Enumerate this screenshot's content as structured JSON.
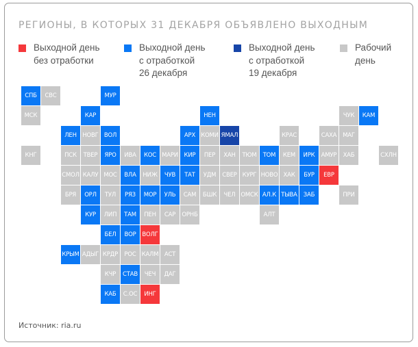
{
  "title": "РЕГИОНЫ, В КОТОРЫХ 31 ДЕКАБРЯ ОБЪЯВЛЕНО ВЫХОДНЫМ",
  "source": "Источник: ria.ru",
  "colors": {
    "red": "#F5383B",
    "blue": "#0A78F5",
    "dark": "#1745A8",
    "grey": "#C8C8C8"
  },
  "legend": [
    {
      "key": "red",
      "label": "Выходной день\nбез отработки"
    },
    {
      "key": "blue",
      "label": "Выходной день\nс отработкой\n26 декабря"
    },
    {
      "key": "dark",
      "label": "Выходной день\nс отработкой\n19 декабря"
    },
    {
      "key": "grey",
      "label": "Рабочий\nдень"
    }
  ],
  "chart_data": {
    "type": "heatmap",
    "title": "РЕГИОНЫ, В КОТОРЫХ 31 ДЕКАБРЯ ОБЪЯВЛЕНО ВЫХОДНЫМ",
    "description": "Tile grid map of Russian regions (col, row), category per region",
    "categories": {
      "red": "Выходной день без отработки",
      "blue": "Выходной день с отработкой 26 декабря",
      "dark": "Выходной день с отработкой 19 декабря",
      "grey": "Рабочий день"
    },
    "cells": [
      {
        "label": "СПБ",
        "c": 0,
        "r": 0,
        "cat": "blue"
      },
      {
        "label": "СВС",
        "c": 1,
        "r": 0,
        "cat": "grey"
      },
      {
        "label": "МУР",
        "c": 4,
        "r": 0,
        "cat": "blue"
      },
      {
        "label": "МСК",
        "c": 0,
        "r": 1,
        "cat": "grey"
      },
      {
        "label": "КАР",
        "c": 3,
        "r": 1,
        "cat": "blue"
      },
      {
        "label": "НЕН",
        "c": 9,
        "r": 1,
        "cat": "blue"
      },
      {
        "label": "ЧУК",
        "c": 16,
        "r": 1,
        "cat": "grey"
      },
      {
        "label": "КАМ",
        "c": 17,
        "r": 1,
        "cat": "blue"
      },
      {
        "label": "ЛЕН",
        "c": 2,
        "r": 2,
        "cat": "blue"
      },
      {
        "label": "НОВГ",
        "c": 3,
        "r": 2,
        "cat": "grey"
      },
      {
        "label": "ВОЛ",
        "c": 4,
        "r": 2,
        "cat": "blue"
      },
      {
        "label": "АРХ",
        "c": 8,
        "r": 2,
        "cat": "blue"
      },
      {
        "label": "КОМИ",
        "c": 9,
        "r": 2,
        "cat": "grey"
      },
      {
        "label": "ЯМАЛ",
        "c": 10,
        "r": 2,
        "cat": "dark"
      },
      {
        "label": "КРАС",
        "c": 13,
        "r": 2,
        "cat": "grey"
      },
      {
        "label": "САХА",
        "c": 15,
        "r": 2,
        "cat": "grey"
      },
      {
        "label": "МАГ",
        "c": 16,
        "r": 2,
        "cat": "grey"
      },
      {
        "label": "КНГ",
        "c": 0,
        "r": 3,
        "cat": "grey"
      },
      {
        "label": "ПСК",
        "c": 2,
        "r": 3,
        "cat": "grey"
      },
      {
        "label": "ТВЕР",
        "c": 3,
        "r": 3,
        "cat": "grey"
      },
      {
        "label": "ЯРО",
        "c": 4,
        "r": 3,
        "cat": "blue"
      },
      {
        "label": "ИВА",
        "c": 5,
        "r": 3,
        "cat": "grey"
      },
      {
        "label": "КОС",
        "c": 6,
        "r": 3,
        "cat": "blue"
      },
      {
        "label": "МАРИ",
        "c": 7,
        "r": 3,
        "cat": "grey"
      },
      {
        "label": "КИР",
        "c": 8,
        "r": 3,
        "cat": "blue"
      },
      {
        "label": "ПЕР",
        "c": 9,
        "r": 3,
        "cat": "grey"
      },
      {
        "label": "ХАН",
        "c": 10,
        "r": 3,
        "cat": "grey"
      },
      {
        "label": "ТЮМ",
        "c": 11,
        "r": 3,
        "cat": "grey"
      },
      {
        "label": "ТОМ",
        "c": 12,
        "r": 3,
        "cat": "blue"
      },
      {
        "label": "КЕМ",
        "c": 13,
        "r": 3,
        "cat": "grey"
      },
      {
        "label": "ИРК",
        "c": 14,
        "r": 3,
        "cat": "blue"
      },
      {
        "label": "АМУР",
        "c": 15,
        "r": 3,
        "cat": "grey"
      },
      {
        "label": "ХАБ",
        "c": 16,
        "r": 3,
        "cat": "grey"
      },
      {
        "label": "СХЛН",
        "c": 18,
        "r": 3,
        "cat": "grey"
      },
      {
        "label": "СМОЛ",
        "c": 2,
        "r": 4,
        "cat": "grey"
      },
      {
        "label": "КАЛУ",
        "c": 3,
        "r": 4,
        "cat": "grey"
      },
      {
        "label": "МОС",
        "c": 4,
        "r": 4,
        "cat": "grey"
      },
      {
        "label": "ВЛА",
        "c": 5,
        "r": 4,
        "cat": "blue"
      },
      {
        "label": "НИЖ",
        "c": 6,
        "r": 4,
        "cat": "grey"
      },
      {
        "label": "ЧУВ",
        "c": 7,
        "r": 4,
        "cat": "blue"
      },
      {
        "label": "ТАТ",
        "c": 8,
        "r": 4,
        "cat": "blue"
      },
      {
        "label": "УДМ",
        "c": 9,
        "r": 4,
        "cat": "grey"
      },
      {
        "label": "СВЕР",
        "c": 10,
        "r": 4,
        "cat": "grey"
      },
      {
        "label": "КУРГ",
        "c": 11,
        "r": 4,
        "cat": "grey"
      },
      {
        "label": "НОВО",
        "c": 12,
        "r": 4,
        "cat": "grey"
      },
      {
        "label": "ХАК",
        "c": 13,
        "r": 4,
        "cat": "grey"
      },
      {
        "label": "БУР",
        "c": 14,
        "r": 4,
        "cat": "blue"
      },
      {
        "label": "ЕВР",
        "c": 15,
        "r": 4,
        "cat": "red"
      },
      {
        "label": "БРЯ",
        "c": 2,
        "r": 5,
        "cat": "grey"
      },
      {
        "label": "ОРЛ",
        "c": 3,
        "r": 5,
        "cat": "blue"
      },
      {
        "label": "ТУЛ",
        "c": 4,
        "r": 5,
        "cat": "grey"
      },
      {
        "label": "РЯЗ",
        "c": 5,
        "r": 5,
        "cat": "blue"
      },
      {
        "label": "МОР",
        "c": 6,
        "r": 5,
        "cat": "blue"
      },
      {
        "label": "УЛЬ",
        "c": 7,
        "r": 5,
        "cat": "blue"
      },
      {
        "label": "САМ",
        "c": 8,
        "r": 5,
        "cat": "grey"
      },
      {
        "label": "БШК",
        "c": 9,
        "r": 5,
        "cat": "grey"
      },
      {
        "label": "ЧЕЛ",
        "c": 10,
        "r": 5,
        "cat": "grey"
      },
      {
        "label": "ОМСК",
        "c": 11,
        "r": 5,
        "cat": "grey"
      },
      {
        "label": "АЛ.К",
        "c": 12,
        "r": 5,
        "cat": "blue"
      },
      {
        "label": "ТЫВА",
        "c": 13,
        "r": 5,
        "cat": "blue"
      },
      {
        "label": "ЗАБ",
        "c": 14,
        "r": 5,
        "cat": "blue"
      },
      {
        "label": "ПРИ",
        "c": 16,
        "r": 5,
        "cat": "grey"
      },
      {
        "label": "КУР",
        "c": 3,
        "r": 6,
        "cat": "blue"
      },
      {
        "label": "ЛИП",
        "c": 4,
        "r": 6,
        "cat": "grey"
      },
      {
        "label": "ТАМ",
        "c": 5,
        "r": 6,
        "cat": "blue"
      },
      {
        "label": "ПЕН",
        "c": 6,
        "r": 6,
        "cat": "grey"
      },
      {
        "label": "САР",
        "c": 7,
        "r": 6,
        "cat": "grey"
      },
      {
        "label": "ОРНБ",
        "c": 8,
        "r": 6,
        "cat": "grey"
      },
      {
        "label": "АЛТ",
        "c": 12,
        "r": 6,
        "cat": "grey"
      },
      {
        "label": "БЕЛ",
        "c": 4,
        "r": 7,
        "cat": "blue"
      },
      {
        "label": "ВОР",
        "c": 5,
        "r": 7,
        "cat": "blue"
      },
      {
        "label": "ВОЛГ",
        "c": 6,
        "r": 7,
        "cat": "red"
      },
      {
        "label": "КРЫМ",
        "c": 2,
        "r": 8,
        "cat": "blue"
      },
      {
        "label": "АДЫГ",
        "c": 3,
        "r": 8,
        "cat": "grey"
      },
      {
        "label": "КРДР",
        "c": 4,
        "r": 8,
        "cat": "grey"
      },
      {
        "label": "РОС",
        "c": 5,
        "r": 8,
        "cat": "grey"
      },
      {
        "label": "КАЛМ",
        "c": 6,
        "r": 8,
        "cat": "grey"
      },
      {
        "label": "АСТ",
        "c": 7,
        "r": 8,
        "cat": "grey"
      },
      {
        "label": "КЧР",
        "c": 4,
        "r": 9,
        "cat": "grey"
      },
      {
        "label": "СТАВ",
        "c": 5,
        "r": 9,
        "cat": "blue"
      },
      {
        "label": "ЧЕЧ",
        "c": 6,
        "r": 9,
        "cat": "grey"
      },
      {
        "label": "ДАГ",
        "c": 7,
        "r": 9,
        "cat": "grey"
      },
      {
        "label": "КАБ",
        "c": 4,
        "r": 10,
        "cat": "blue"
      },
      {
        "label": "С.ОС",
        "c": 5,
        "r": 10,
        "cat": "grey"
      },
      {
        "label": "ИНГ",
        "c": 6,
        "r": 10,
        "cat": "red"
      }
    ]
  }
}
